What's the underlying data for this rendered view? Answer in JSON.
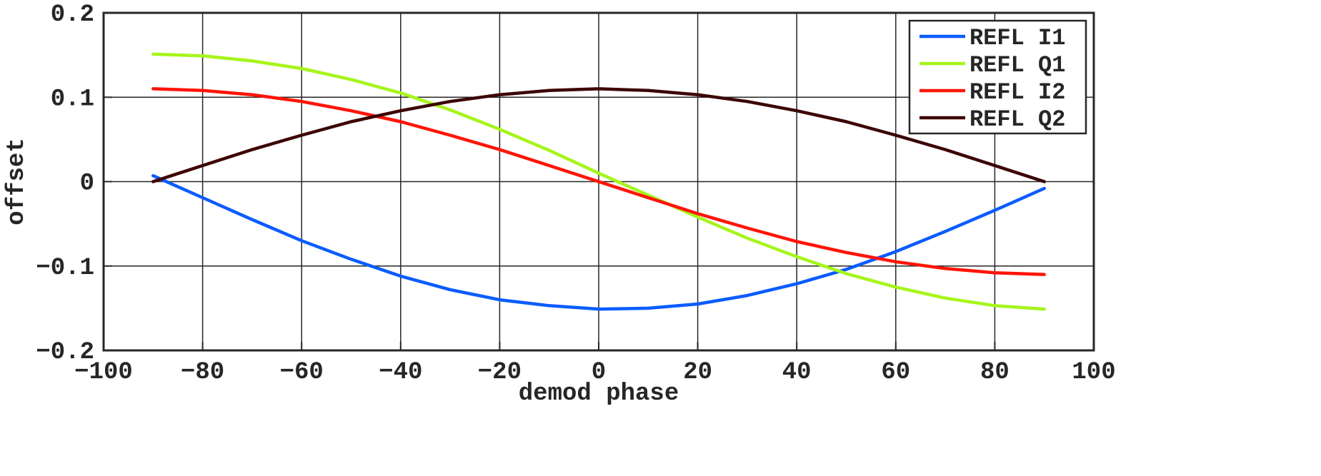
{
  "chart_data": {
    "type": "line",
    "xlabel": "demod phase",
    "ylabel": "offset",
    "xlim": [
      -100,
      100
    ],
    "ylim": [
      -0.2,
      0.2
    ],
    "xticks": [
      -100,
      -80,
      -60,
      -40,
      -20,
      0,
      20,
      40,
      60,
      80,
      100
    ],
    "xtick_labels": [
      "−100",
      "−80",
      "−60",
      "−40",
      "−20",
      "0",
      "20",
      "40",
      "60",
      "80",
      "100"
    ],
    "yticks": [
      -0.2,
      -0.1,
      0,
      0.1,
      0.2
    ],
    "ytick_labels": [
      "−0.2",
      "−0.1",
      "0",
      "0.1",
      "0.2"
    ],
    "grid": true,
    "legend_position": "top-right",
    "x": [
      -90,
      -80,
      -70,
      -60,
      -50,
      -40,
      -30,
      -20,
      -10,
      0,
      10,
      20,
      30,
      40,
      50,
      60,
      70,
      80,
      90
    ],
    "series": [
      {
        "name": "REFL I1",
        "color": "#0b5cff",
        "values": [
          0.007,
          -0.019,
          -0.045,
          -0.07,
          -0.092,
          -0.112,
          -0.128,
          -0.14,
          -0.147,
          -0.151,
          -0.15,
          -0.145,
          -0.135,
          -0.121,
          -0.104,
          -0.083,
          -0.059,
          -0.034,
          -0.008
        ]
      },
      {
        "name": "REFL Q1",
        "color": "#a6f51b",
        "values": [
          0.151,
          0.149,
          0.143,
          0.134,
          0.121,
          0.105,
          0.085,
          0.062,
          0.037,
          0.01,
          -0.016,
          -0.042,
          -0.067,
          -0.089,
          -0.109,
          -0.125,
          -0.138,
          -0.147,
          -0.151
        ]
      },
      {
        "name": "REFL I2",
        "color": "#ff1408",
        "values": [
          0.11,
          0.108,
          0.103,
          0.095,
          0.084,
          0.071,
          0.055,
          0.038,
          0.019,
          0.0,
          -0.019,
          -0.038,
          -0.055,
          -0.071,
          -0.084,
          -0.095,
          -0.103,
          -0.108,
          -0.11
        ]
      },
      {
        "name": "REFL Q2",
        "color": "#3d0505",
        "values": [
          0.0,
          0.019,
          0.038,
          0.055,
          0.071,
          0.084,
          0.095,
          0.103,
          0.108,
          0.11,
          0.108,
          0.103,
          0.095,
          0.084,
          0.071,
          0.055,
          0.038,
          0.019,
          0.0
        ]
      }
    ]
  }
}
